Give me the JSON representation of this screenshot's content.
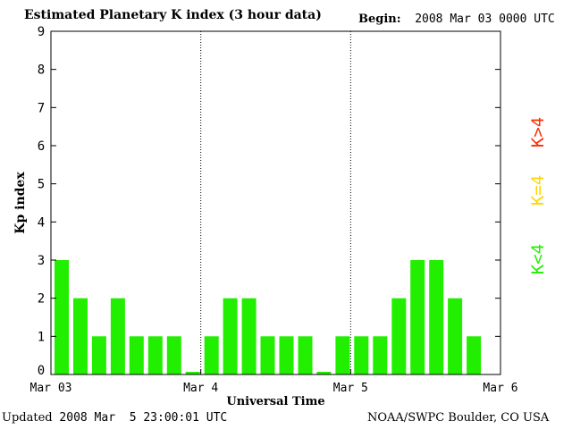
{
  "header": {
    "title": "Estimated Planetary K index (3 hour data)",
    "begin_label": "Begin:",
    "begin_value": "2008 Mar 03 0000 UTC"
  },
  "footer": {
    "updated_label": "Updated",
    "updated_value": "2008 Mar  5 23:00:01 UTC",
    "credit": "NOAA/SWPC Boulder, CO USA"
  },
  "legend": {
    "high": {
      "label": "K>4",
      "color": "#ff2a00"
    },
    "equal": {
      "label": "K=4",
      "color": "#ffd500"
    },
    "low": {
      "label": "K<4",
      "color": "#22ee00"
    }
  },
  "chart_data": {
    "type": "bar",
    "title": "Estimated Planetary K index (3 hour data)",
    "xlabel": "Universal Time",
    "ylabel": "Kp index",
    "ylim": [
      0,
      9
    ],
    "yticks": [
      0,
      1,
      2,
      3,
      4,
      5,
      6,
      7,
      8,
      9
    ],
    "xtick_labels": [
      "Mar 03",
      "Mar 4",
      "Mar 5",
      "Mar 6"
    ],
    "bars_per_day": 8,
    "values": [
      3,
      2,
      1,
      2,
      1,
      1,
      1,
      0,
      1,
      2,
      2,
      1,
      1,
      1,
      0,
      1,
      1,
      1,
      2,
      3,
      3,
      2,
      1
    ],
    "bar_color": "#22ee00",
    "day_dividers": true
  }
}
